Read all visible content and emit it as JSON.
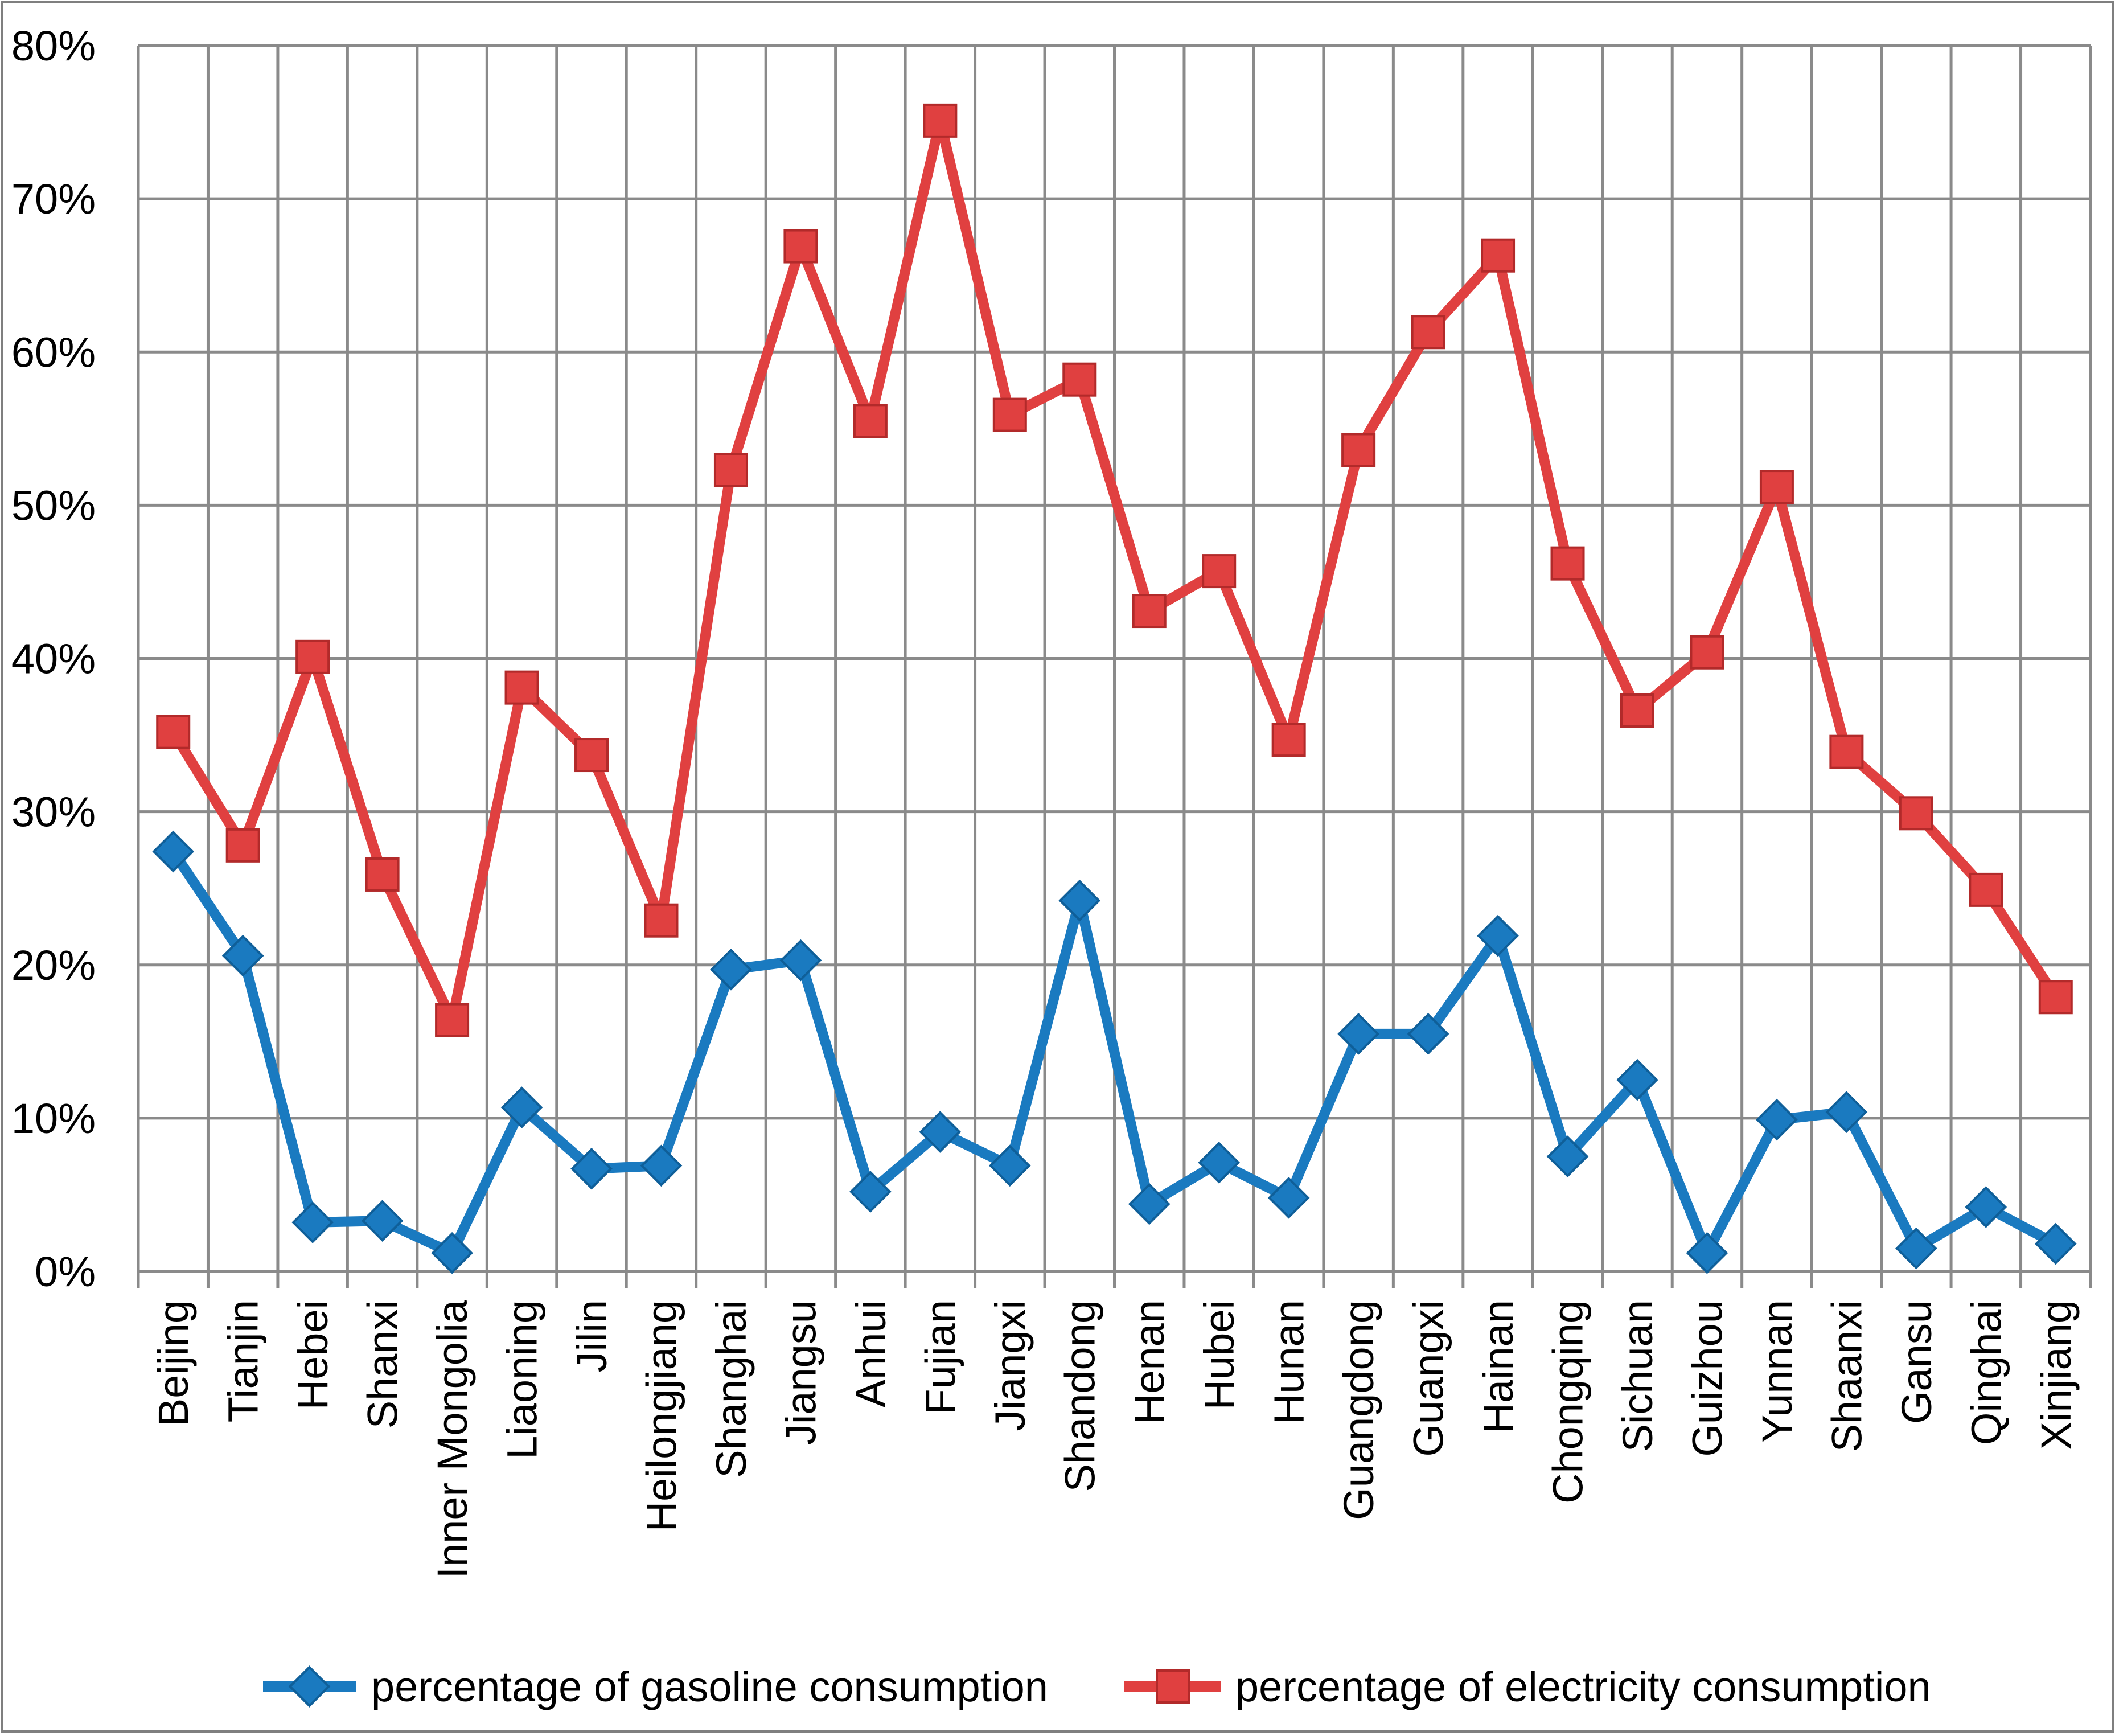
{
  "chart_data": {
    "type": "line",
    "title": "",
    "xlabel": "",
    "ylabel": "",
    "ylim": [
      0,
      0.8
    ],
    "y_ticks": [
      "0%",
      "10%",
      "20%",
      "30%",
      "40%",
      "50%",
      "60%",
      "70%",
      "80%"
    ],
    "grid": true,
    "legend_position": "bottom",
    "categories": [
      "Beijing",
      "Tianjin",
      "Hebei",
      "Shanxi",
      "Inner Mongolia",
      "Liaoning",
      "Jilin",
      "Heilongjiang",
      "Shanghai",
      "Jiangsu",
      "Anhui",
      "Fujian",
      "Jiangxi",
      "Shandong",
      "Henan",
      "Hubei",
      "Hunan",
      "Guangdong",
      "Guangxi",
      "Hainan",
      "Chongqing",
      "Sichuan",
      "Guizhou",
      "Yunnan",
      "Shaanxi",
      "Gansu",
      "Qinghai",
      "Xinjiang"
    ],
    "series": [
      {
        "name": "percentage of gasoline consumption",
        "color": "#1a7ac0",
        "marker": "diamond",
        "values": [
          0.274,
          0.206,
          0.032,
          0.033,
          0.012,
          0.107,
          0.067,
          0.069,
          0.197,
          0.203,
          0.052,
          0.091,
          0.069,
          0.242,
          0.044,
          0.071,
          0.048,
          0.155,
          0.155,
          0.219,
          0.075,
          0.125,
          0.012,
          0.099,
          0.104,
          0.015,
          0.042,
          0.018
        ]
      },
      {
        "name": "percentage of electricity consumption",
        "color": "#e04040",
        "marker": "square",
        "values": [
          0.352,
          0.278,
          0.401,
          0.259,
          0.164,
          0.381,
          0.337,
          0.229,
          0.523,
          0.669,
          0.555,
          0.751,
          0.559,
          0.582,
          0.431,
          0.457,
          0.347,
          0.536,
          0.613,
          0.663,
          0.462,
          0.366,
          0.404,
          0.512,
          0.339,
          0.299,
          0.249,
          0.179
        ]
      }
    ]
  }
}
